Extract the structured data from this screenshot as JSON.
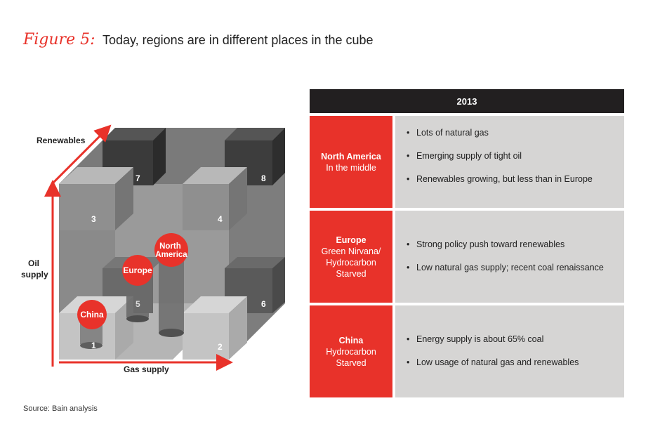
{
  "figure": {
    "label": "Figure 5:",
    "title": "Today, regions are in different places in the cube"
  },
  "cube": {
    "axes": {
      "renewables": "Renewables",
      "oil_supply": "Oil supply",
      "gas_supply": "Gas supply"
    },
    "corner_numbers": [
      "1",
      "2",
      "3",
      "4",
      "5",
      "6",
      "7",
      "8"
    ],
    "region_markers": [
      {
        "name": "China"
      },
      {
        "name": "Europe"
      },
      {
        "name": "North America"
      }
    ]
  },
  "table": {
    "header": "2013",
    "rows": [
      {
        "region": "North America",
        "subtitle": "In the middle",
        "bullets": [
          "Lots of natural gas",
          "Emerging supply of tight oil",
          "Renewables growing, but less than in Europe"
        ]
      },
      {
        "region": "Europe",
        "subtitle": "Green Nirvana/ Hydrocarbon Starved",
        "bullets": [
          "Strong policy push toward renewables",
          "Low natural gas supply; recent coal renaissance"
        ]
      },
      {
        "region": "China",
        "subtitle": "Hydrocarbon Starved",
        "bullets": [
          "Energy supply is about 65% coal",
          "Low usage of natural gas and renewables"
        ]
      }
    ]
  },
  "source": "Source: Bain analysis",
  "colors": {
    "accent_red": "#e8322a",
    "header_black": "#221f20",
    "cell_gray": "#d6d5d4"
  }
}
